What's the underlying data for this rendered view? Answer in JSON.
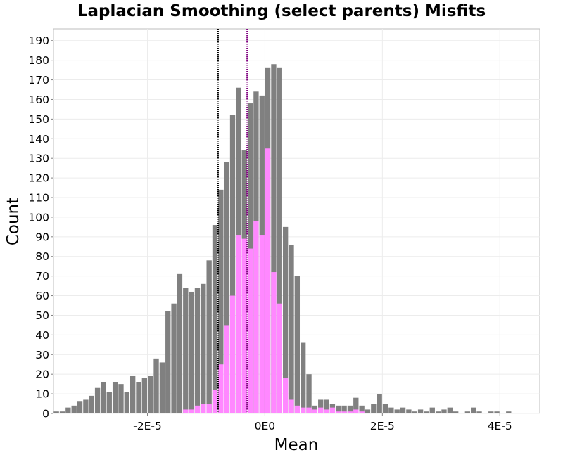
{
  "chart_data": {
    "type": "bar",
    "title": "Laplacian Smoothing (select parents) Misfits",
    "xlabel": "Mean",
    "ylabel": "Count",
    "x_bin_start": -3.6e-05,
    "x_bin_width": 1e-06,
    "xlim": [
      -3.6e-05,
      4.68e-05
    ],
    "ylim": [
      0,
      196
    ],
    "x_ticks": [
      {
        "value": -2e-05,
        "label": "-2E-5"
      },
      {
        "value": 0,
        "label": "0E0"
      },
      {
        "value": 2e-05,
        "label": "2E-5"
      },
      {
        "value": 4e-05,
        "label": "4E-5"
      }
    ],
    "y_ticks": [
      0,
      10,
      20,
      30,
      40,
      50,
      60,
      70,
      80,
      90,
      100,
      110,
      120,
      130,
      140,
      150,
      160,
      170,
      180,
      190
    ],
    "grid": true,
    "series": [
      {
        "color": "#808080",
        "values": [
          1,
          1,
          3,
          4,
          6,
          7,
          9,
          13,
          16,
          11,
          16,
          15,
          11,
          19,
          16,
          18,
          19,
          28,
          26,
          52,
          56,
          71,
          64,
          62,
          64,
          66,
          78,
          96,
          114,
          128,
          152,
          166,
          134,
          158,
          164,
          162,
          176,
          178,
          176,
          95,
          86,
          70,
          36,
          20,
          4,
          7,
          7,
          5,
          4,
          4,
          4,
          8,
          4,
          2,
          5,
          10,
          5,
          3,
          2,
          3,
          2,
          1,
          2,
          1,
          3,
          1,
          2,
          3,
          1,
          0,
          1,
          3,
          1,
          0,
          1,
          1,
          0,
          1,
          0,
          0,
          0,
          0,
          0,
          0,
          0
        ]
      },
      {
        "color": "#ff88ff",
        "values": [
          0,
          0,
          0,
          0,
          0,
          0,
          0,
          0,
          0,
          0,
          0,
          0,
          0,
          0,
          0,
          0,
          0,
          0,
          0,
          0,
          0,
          0,
          2,
          2,
          4,
          5,
          5,
          12,
          25,
          45,
          60,
          91,
          89,
          84,
          98,
          91,
          135,
          72,
          56,
          18,
          7,
          4,
          3,
          3,
          2,
          3,
          2,
          3,
          1,
          1,
          1,
          2,
          1,
          0,
          0,
          0,
          0,
          0,
          0,
          0,
          0,
          0,
          0,
          0,
          0,
          0,
          0,
          0,
          0,
          0,
          0,
          0,
          0,
          0,
          0,
          0,
          0,
          0,
          0,
          0,
          0,
          0,
          0,
          0,
          0
        ]
      }
    ],
    "reference_lines": [
      {
        "x": -8e-06,
        "color": "#000000",
        "style": "dotted"
      },
      {
        "x": -3e-06,
        "color": "#800080",
        "style": "dotted"
      }
    ]
  }
}
